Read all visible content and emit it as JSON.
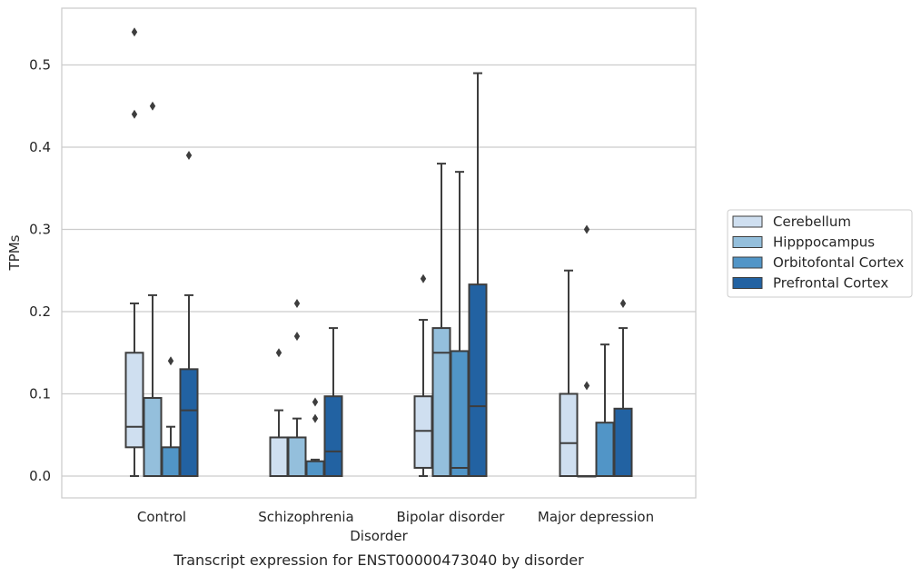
{
  "chart_data": {
    "type": "box",
    "title": "",
    "caption": "Transcript expression for ENST00000473040 by disorder",
    "xlabel": "Disorder",
    "ylabel": "TPMs",
    "ylim": [
      -0.025,
      0.57
    ],
    "yticks": [
      0.0,
      0.1,
      0.2,
      0.3,
      0.4,
      0.5
    ],
    "ytick_labels": [
      "0.0",
      "0.1",
      "0.2",
      "0.3",
      "0.4",
      "0.5"
    ],
    "grid": "horizontal",
    "legend_position": "right",
    "categories": [
      "Control",
      "Schizophrenia",
      "Bipolar disorder",
      "Major depression"
    ],
    "series": [
      {
        "name": "Cerebellum",
        "color": "#cfdff0",
        "boxes": [
          {
            "whislo": 0.0,
            "q1": 0.035,
            "med": 0.06,
            "q3": 0.15,
            "whishi": 0.21,
            "fliers": [
              0.54,
              0.44
            ]
          },
          {
            "whislo": 0.0,
            "q1": 0.0,
            "med": 0.0,
            "q3": 0.047,
            "whishi": 0.08,
            "fliers": [
              0.15
            ]
          },
          {
            "whislo": 0.0,
            "q1": 0.01,
            "med": 0.055,
            "q3": 0.097,
            "whishi": 0.19,
            "fliers": [
              0.24
            ]
          },
          {
            "whislo": 0.0,
            "q1": 0.0,
            "med": 0.04,
            "q3": 0.1,
            "whishi": 0.25,
            "fliers": []
          }
        ]
      },
      {
        "name": "Hipppocampus",
        "color": "#94bfdc",
        "boxes": [
          {
            "whislo": 0.0,
            "q1": 0.0,
            "med": 0.0,
            "q3": 0.095,
            "whishi": 0.22,
            "fliers": [
              0.45
            ]
          },
          {
            "whislo": 0.0,
            "q1": 0.0,
            "med": 0.0,
            "q3": 0.047,
            "whishi": 0.07,
            "fliers": [
              0.21,
              0.17
            ]
          },
          {
            "whislo": 0.0,
            "q1": 0.0,
            "med": 0.15,
            "q3": 0.18,
            "whishi": 0.38,
            "fliers": []
          },
          {
            "whislo": 0.0,
            "q1": 0.0,
            "med": 0.0,
            "q3": 0.0,
            "whishi": 0.0,
            "fliers": [
              0.3,
              0.11
            ]
          }
        ]
      },
      {
        "name": "Orbitofontal Cortex",
        "color": "#5195c7",
        "boxes": [
          {
            "whislo": 0.0,
            "q1": 0.0,
            "med": 0.0,
            "q3": 0.035,
            "whishi": 0.06,
            "fliers": [
              0.14
            ]
          },
          {
            "whislo": 0.0,
            "q1": 0.0,
            "med": 0.0,
            "q3": 0.018,
            "whishi": 0.02,
            "fliers": [
              0.09,
              0.07
            ]
          },
          {
            "whislo": 0.0,
            "q1": 0.0,
            "med": 0.01,
            "q3": 0.152,
            "whishi": 0.37,
            "fliers": []
          },
          {
            "whislo": 0.0,
            "q1": 0.0,
            "med": 0.0,
            "q3": 0.065,
            "whishi": 0.16,
            "fliers": []
          }
        ]
      },
      {
        "name": "Prefrontal Cortex",
        "color": "#2262a2",
        "boxes": [
          {
            "whislo": 0.0,
            "q1": 0.0,
            "med": 0.08,
            "q3": 0.13,
            "whishi": 0.22,
            "fliers": [
              0.39
            ]
          },
          {
            "whislo": 0.0,
            "q1": 0.0,
            "med": 0.03,
            "q3": 0.097,
            "whishi": 0.18,
            "fliers": []
          },
          {
            "whislo": 0.0,
            "q1": 0.0,
            "med": 0.085,
            "q3": 0.233,
            "whishi": 0.49,
            "fliers": []
          },
          {
            "whislo": 0.0,
            "q1": 0.0,
            "med": 0.0,
            "q3": 0.082,
            "whishi": 0.18,
            "fliers": [
              0.21
            ]
          }
        ]
      }
    ]
  }
}
